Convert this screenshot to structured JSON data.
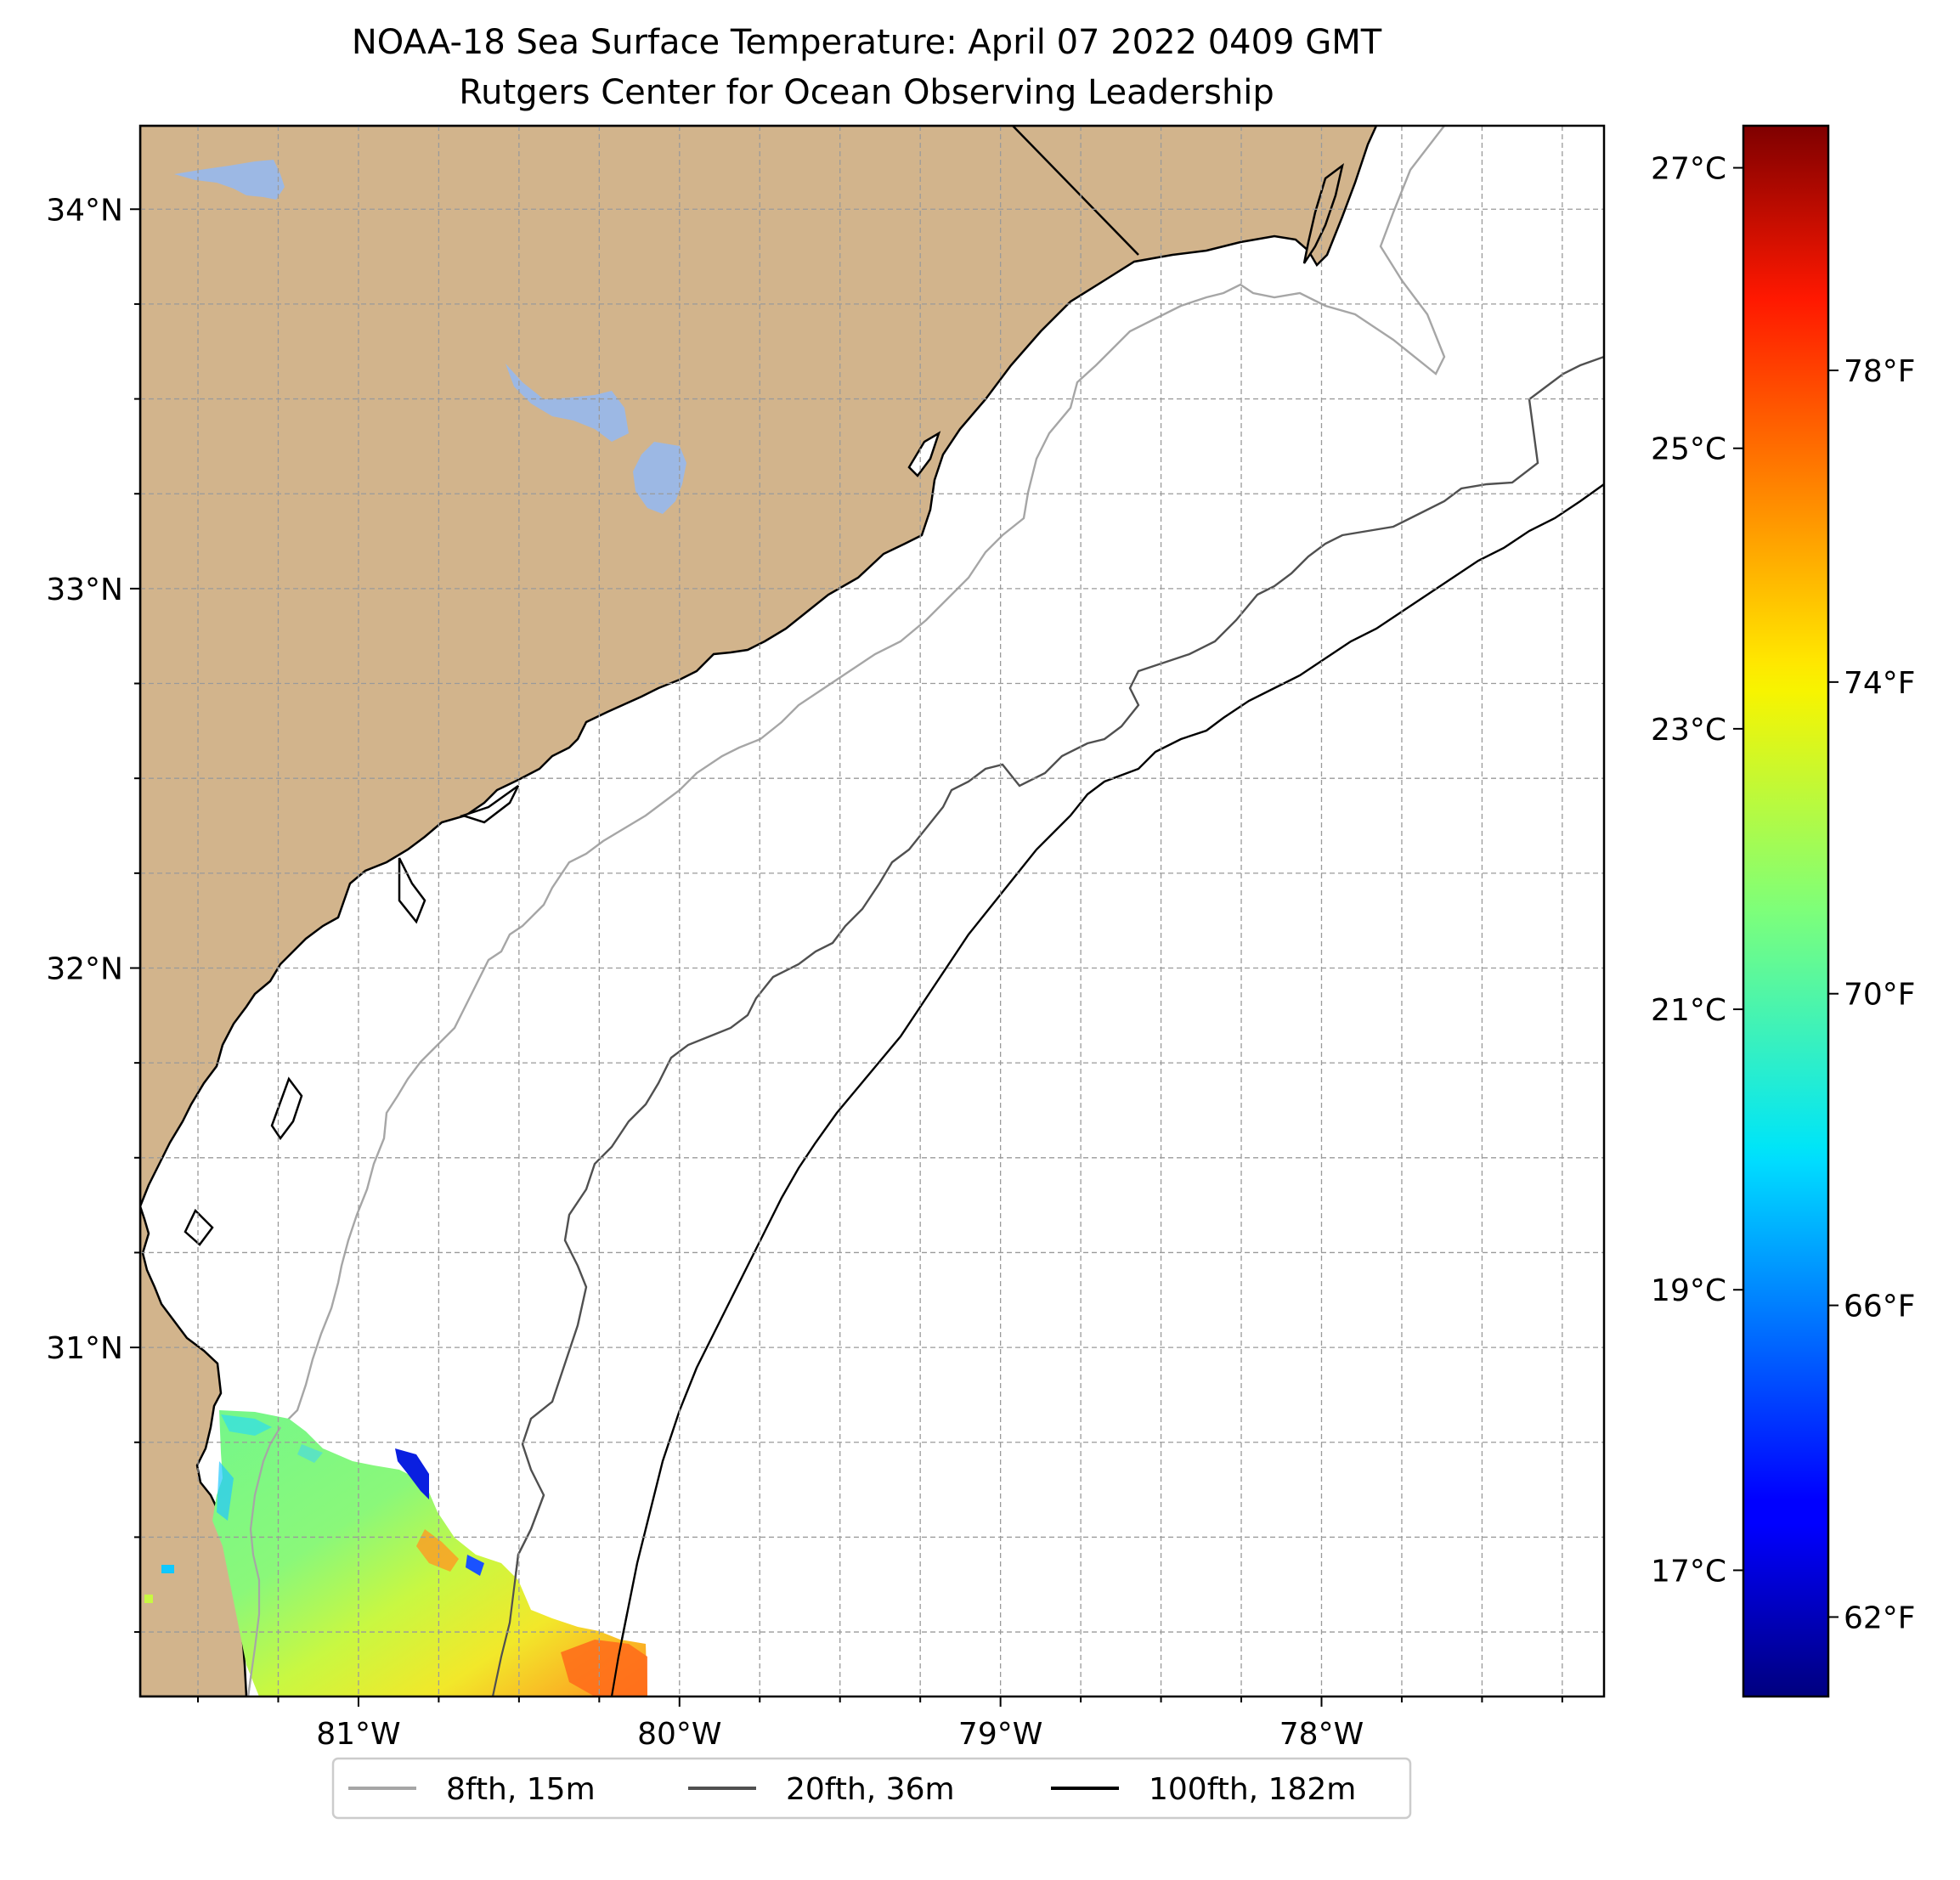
{
  "title": {
    "line1": "NOAA-18 Sea Surface Temperature: April 07 2022 0409 GMT",
    "line2": "Rutgers Center for Ocean Observing Leadership"
  },
  "map": {
    "lon_range": [
      -81.68,
      -77.12
    ],
    "lat_range": [
      30.08,
      34.22
    ],
    "lon_labels": [
      {
        "value": -81,
        "label": "81°W"
      },
      {
        "value": -80,
        "label": "80°W"
      },
      {
        "value": -79,
        "label": "79°W"
      },
      {
        "value": -78,
        "label": "78°W"
      }
    ],
    "lat_labels": [
      {
        "value": 34,
        "label": "34°N"
      },
      {
        "value": 33,
        "label": "33°N"
      },
      {
        "value": 32,
        "label": "32°N"
      },
      {
        "value": 31,
        "label": "31°N"
      }
    ],
    "grid": true,
    "grid_style": "dashed",
    "colors": {
      "land": "#d2b48c",
      "lakes": "#9cb8e4",
      "ocean": "#ffffff",
      "coastline": "#000000"
    }
  },
  "colorbar": {
    "colormap": "jet",
    "range_c": [
      16.1,
      27.3
    ],
    "celsius_ticks": [
      {
        "value": 27,
        "label": "27°C"
      },
      {
        "value": 25,
        "label": "25°C"
      },
      {
        "value": 23,
        "label": "23°C"
      },
      {
        "value": 21,
        "label": "21°C"
      },
      {
        "value": 19,
        "label": "19°C"
      },
      {
        "value": 17,
        "label": "17°C"
      }
    ],
    "fahrenheit_ticks": [
      {
        "value": 78,
        "label": "78°F"
      },
      {
        "value": 74,
        "label": "74°F"
      },
      {
        "value": 70,
        "label": "70°F"
      },
      {
        "value": 66,
        "label": "66°F"
      },
      {
        "value": 62,
        "label": "62°F"
      }
    ]
  },
  "legend": {
    "items": [
      {
        "label": "8fth, 15m",
        "color": "#a6a6a6"
      },
      {
        "label": "20fth, 36m",
        "color": "#505050"
      },
      {
        "label": "100fth, 182m",
        "color": "#000000"
      }
    ]
  }
}
